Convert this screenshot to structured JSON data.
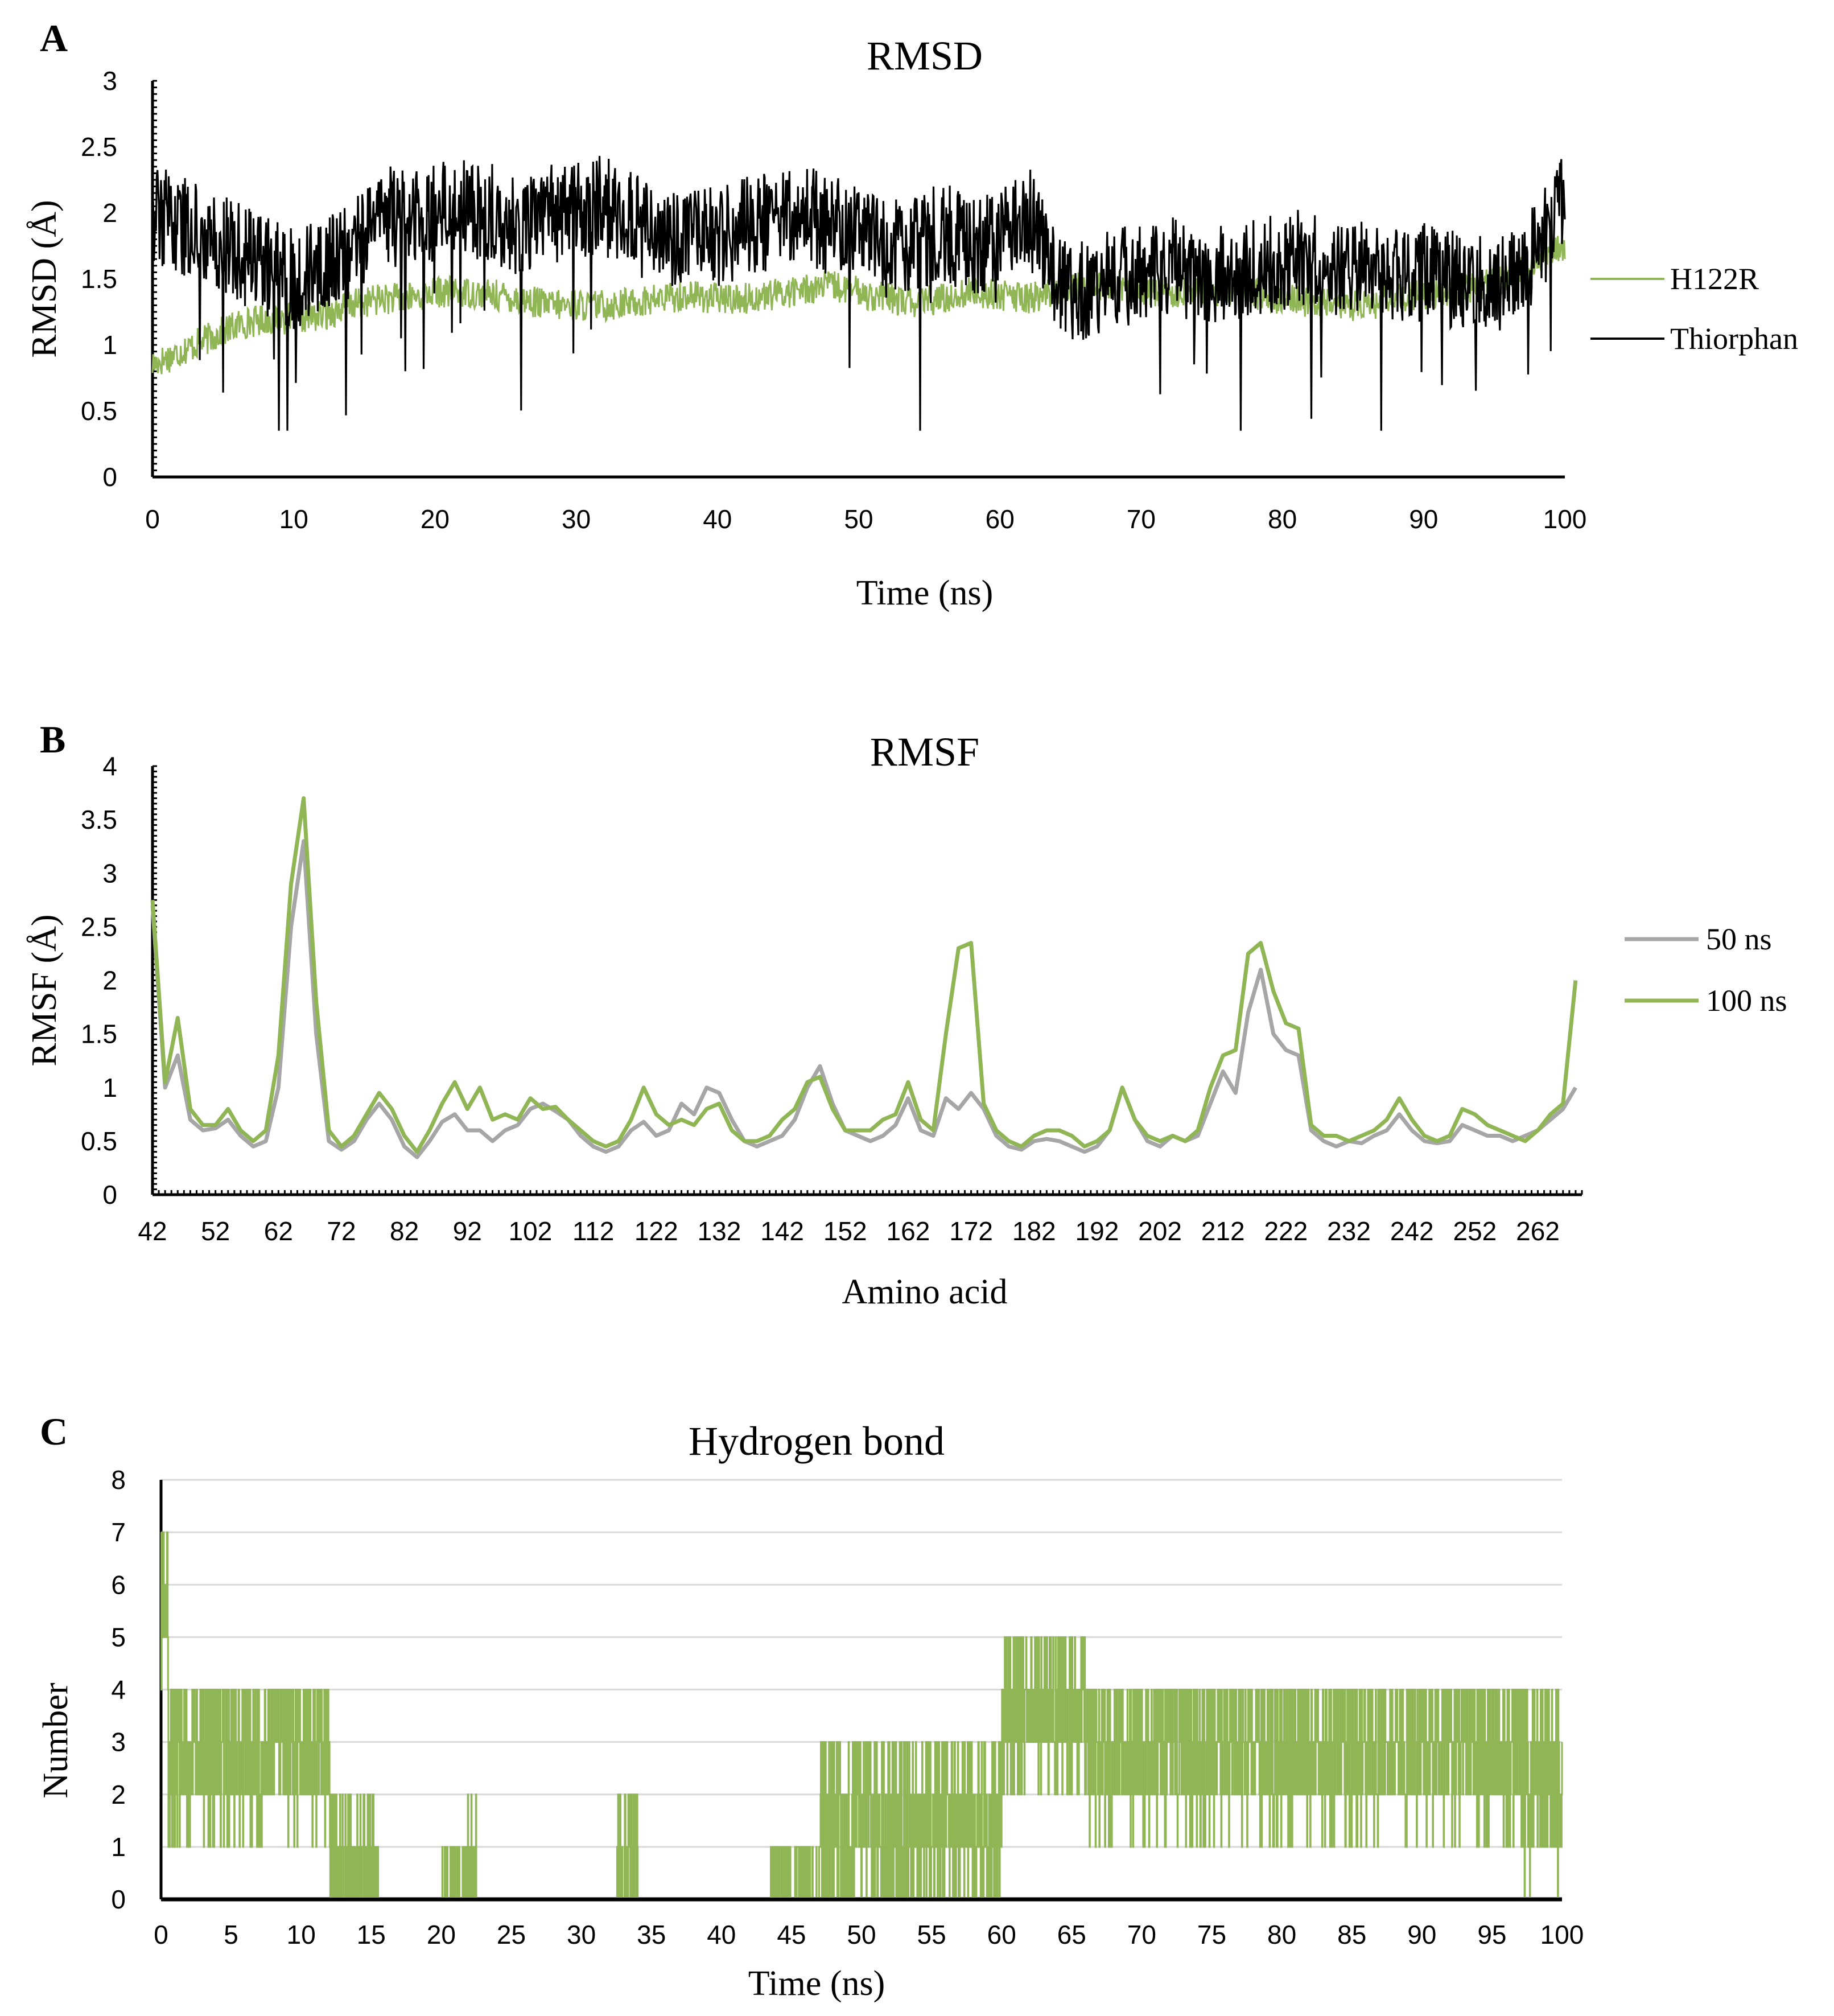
{
  "chart_data": [
    {
      "panel": "A",
      "type": "line",
      "title": "RMSD",
      "xlabel": "Time (ns)",
      "ylabel": "RMSD (Å)",
      "xlim": [
        0,
        100
      ],
      "ylim": [
        0,
        3
      ],
      "xticks": [
        "0",
        "10",
        "20",
        "30",
        "40",
        "50",
        "60",
        "70",
        "80",
        "90",
        "100"
      ],
      "yticks": [
        "0",
        "0.5",
        "1",
        "1.5",
        "2",
        "2.5",
        "3"
      ],
      "legend_position": "right",
      "grid": false,
      "series": [
        {
          "name": "H122R",
          "color": "#8fb554",
          "x": [
            0,
            2,
            4,
            6,
            8,
            10,
            12,
            14,
            16,
            18,
            20,
            22,
            24,
            26,
            28,
            30,
            32,
            34,
            36,
            38,
            40,
            42,
            44,
            46,
            48,
            50,
            52,
            54,
            56,
            58,
            60,
            62,
            64,
            66,
            68,
            70,
            72,
            74,
            76,
            78,
            80,
            82,
            84,
            86,
            88,
            90,
            92,
            94,
            96,
            98,
            100
          ],
          "y": [
            0.85,
            0.95,
            1.05,
            1.15,
            1.2,
            1.2,
            1.22,
            1.3,
            1.35,
            1.35,
            1.4,
            1.4,
            1.38,
            1.35,
            1.3,
            1.3,
            1.3,
            1.32,
            1.35,
            1.38,
            1.35,
            1.35,
            1.38,
            1.42,
            1.45,
            1.4,
            1.35,
            1.32,
            1.35,
            1.4,
            1.38,
            1.35,
            1.4,
            1.45,
            1.45,
            1.42,
            1.4,
            1.42,
            1.4,
            1.38,
            1.35,
            1.32,
            1.3,
            1.3,
            1.35,
            1.38,
            1.4,
            1.45,
            1.5,
            1.6,
            1.75
          ],
          "noise": 0.12
        },
        {
          "name": "Thiorphan",
          "color": "#000000",
          "x": [
            0,
            2,
            4,
            6,
            8,
            10,
            12,
            14,
            16,
            18,
            20,
            22,
            24,
            26,
            28,
            30,
            32,
            34,
            36,
            38,
            40,
            42,
            44,
            46,
            48,
            50,
            52,
            54,
            56,
            58,
            60,
            62,
            64,
            66,
            68,
            70,
            72,
            74,
            76,
            78,
            80,
            82,
            84,
            86,
            88,
            90,
            92,
            94,
            96,
            98,
            100
          ],
          "y": [
            2.0,
            1.9,
            1.85,
            1.7,
            1.6,
            1.5,
            1.6,
            1.7,
            2.0,
            1.95,
            2.0,
            2.05,
            2.0,
            1.9,
            2.0,
            2.0,
            2.1,
            1.95,
            1.75,
            1.85,
            1.8,
            1.9,
            1.95,
            2.0,
            1.9,
            1.85,
            1.7,
            1.8,
            1.85,
            1.75,
            1.8,
            2.0,
            1.45,
            1.4,
            1.5,
            1.55,
            1.6,
            1.55,
            1.55,
            1.6,
            1.6,
            1.7,
            1.55,
            1.6,
            1.5,
            1.55,
            1.5,
            1.45,
            1.5,
            1.7,
            2.1
          ],
          "noise": 0.38
        }
      ]
    },
    {
      "panel": "B",
      "type": "line",
      "title": "RMSF",
      "xlabel": "Amino acid",
      "ylabel": "RMSF (Å)",
      "xlim": [
        42,
        269
      ],
      "ylim": [
        0,
        4
      ],
      "xticks": [
        "42",
        "52",
        "62",
        "72",
        "82",
        "92",
        "102",
        "112",
        "122",
        "132",
        "142",
        "152",
        "162",
        "172",
        "182",
        "192",
        "202",
        "212",
        "222",
        "232",
        "242",
        "252",
        "262"
      ],
      "yticks": [
        "0",
        "0.5",
        "1",
        "1.5",
        "2",
        "2.5",
        "3",
        "3.5",
        "4"
      ],
      "legend_position": "right",
      "grid": false,
      "series": [
        {
          "name": "50 ns",
          "color": "#a6a6a6",
          "x": [
            42,
            44,
            46,
            48,
            50,
            52,
            54,
            56,
            58,
            60,
            62,
            64,
            66,
            68,
            70,
            72,
            74,
            76,
            78,
            80,
            82,
            84,
            86,
            88,
            90,
            92,
            94,
            96,
            98,
            100,
            102,
            104,
            106,
            108,
            110,
            112,
            114,
            116,
            118,
            120,
            122,
            124,
            126,
            128,
            130,
            132,
            134,
            136,
            138,
            140,
            142,
            144,
            146,
            148,
            150,
            152,
            154,
            156,
            158,
            160,
            162,
            164,
            166,
            168,
            170,
            172,
            174,
            176,
            178,
            180,
            182,
            184,
            186,
            188,
            190,
            192,
            194,
            196,
            198,
            200,
            202,
            204,
            206,
            208,
            210,
            212,
            214,
            216,
            218,
            220,
            222,
            224,
            226,
            228,
            230,
            232,
            234,
            236,
            238,
            240,
            242,
            244,
            246,
            248,
            250,
            252,
            254,
            256,
            258,
            260,
            262,
            264,
            266,
            268
          ],
          "y": [
            2.7,
            1.0,
            1.3,
            0.7,
            0.6,
            0.62,
            0.7,
            0.55,
            0.45,
            0.5,
            1.0,
            2.5,
            3.3,
            1.5,
            0.5,
            0.42,
            0.5,
            0.7,
            0.85,
            0.7,
            0.45,
            0.35,
            0.5,
            0.68,
            0.75,
            0.6,
            0.6,
            0.5,
            0.6,
            0.65,
            0.8,
            0.85,
            0.78,
            0.7,
            0.55,
            0.45,
            0.4,
            0.45,
            0.6,
            0.68,
            0.55,
            0.6,
            0.85,
            0.75,
            1.0,
            0.95,
            0.7,
            0.5,
            0.45,
            0.5,
            0.55,
            0.7,
            1.0,
            1.2,
            0.85,
            0.6,
            0.55,
            0.5,
            0.55,
            0.65,
            0.9,
            0.6,
            0.55,
            0.9,
            0.8,
            0.95,
            0.8,
            0.55,
            0.45,
            0.42,
            0.5,
            0.52,
            0.5,
            0.45,
            0.4,
            0.45,
            0.6,
            1.0,
            0.7,
            0.5,
            0.45,
            0.55,
            0.5,
            0.55,
            0.85,
            1.15,
            0.95,
            1.7,
            2.1,
            1.5,
            1.35,
            1.3,
            0.6,
            0.5,
            0.45,
            0.5,
            0.48,
            0.55,
            0.6,
            0.75,
            0.6,
            0.5,
            0.48,
            0.5,
            0.65,
            0.6,
            0.55,
            0.55,
            0.5,
            0.55,
            0.6,
            0.7,
            0.8,
            1.0
          ],
          "label": "50 ns"
        },
        {
          "name": "100 ns",
          "color": "#8fb554",
          "x": [
            42,
            44,
            46,
            48,
            50,
            52,
            54,
            56,
            58,
            60,
            62,
            64,
            66,
            68,
            70,
            72,
            74,
            76,
            78,
            80,
            82,
            84,
            86,
            88,
            90,
            92,
            94,
            96,
            98,
            100,
            102,
            104,
            106,
            108,
            110,
            112,
            114,
            116,
            118,
            120,
            122,
            124,
            126,
            128,
            130,
            132,
            134,
            136,
            138,
            140,
            142,
            144,
            146,
            148,
            150,
            152,
            154,
            156,
            158,
            160,
            162,
            164,
            166,
            168,
            170,
            172,
            174,
            176,
            178,
            180,
            182,
            184,
            186,
            188,
            190,
            192,
            194,
            196,
            198,
            200,
            202,
            204,
            206,
            208,
            210,
            212,
            214,
            216,
            218,
            220,
            222,
            224,
            226,
            228,
            230,
            232,
            234,
            236,
            238,
            240,
            242,
            244,
            246,
            248,
            250,
            252,
            254,
            256,
            258,
            260,
            262,
            264,
            266,
            268
          ],
          "y": [
            2.75,
            1.05,
            1.65,
            0.8,
            0.65,
            0.65,
            0.8,
            0.6,
            0.5,
            0.6,
            1.3,
            2.9,
            3.7,
            1.8,
            0.6,
            0.45,
            0.55,
            0.75,
            0.95,
            0.8,
            0.55,
            0.4,
            0.6,
            0.85,
            1.05,
            0.8,
            1.0,
            0.7,
            0.75,
            0.7,
            0.9,
            0.8,
            0.82,
            0.7,
            0.6,
            0.5,
            0.45,
            0.5,
            0.7,
            1.0,
            0.75,
            0.65,
            0.7,
            0.65,
            0.8,
            0.85,
            0.6,
            0.5,
            0.5,
            0.55,
            0.7,
            0.8,
            1.05,
            1.1,
            0.8,
            0.6,
            0.6,
            0.6,
            0.7,
            0.75,
            1.05,
            0.7,
            0.6,
            1.5,
            2.3,
            2.35,
            0.85,
            0.6,
            0.5,
            0.45,
            0.55,
            0.6,
            0.6,
            0.55,
            0.45,
            0.5,
            0.6,
            1.0,
            0.7,
            0.55,
            0.5,
            0.55,
            0.5,
            0.6,
            1.0,
            1.3,
            1.35,
            2.25,
            2.35,
            1.9,
            1.6,
            1.55,
            0.65,
            0.55,
            0.55,
            0.5,
            0.55,
            0.6,
            0.7,
            0.9,
            0.7,
            0.55,
            0.5,
            0.55,
            0.8,
            0.75,
            0.65,
            0.6,
            0.55,
            0.5,
            0.6,
            0.75,
            0.85,
            2.0
          ],
          "label": "100 ns"
        }
      ]
    },
    {
      "panel": "C",
      "type": "line",
      "title": "Hydrogen bond",
      "xlabel": "Time (ns)",
      "ylabel": "Number",
      "xlim": [
        0,
        100
      ],
      "ylim": [
        0,
        8
      ],
      "xticks": [
        "0",
        "5",
        "10",
        "15",
        "20",
        "25",
        "30",
        "35",
        "40",
        "45",
        "50",
        "55",
        "60",
        "65",
        "70",
        "75",
        "80",
        "85",
        "90",
        "95",
        "100"
      ],
      "yticks": [
        "0",
        "1",
        "2",
        "3",
        "4",
        "5",
        "6",
        "7",
        "8"
      ],
      "grid": true,
      "series": [
        {
          "name": "Hydrogen bond",
          "color": "#8fb554",
          "segments": [
            {
              "start": 0,
              "end": 0.5,
              "mean": 5.5,
              "spread": 2
            },
            {
              "start": 0.5,
              "end": 2.5,
              "mean": 2.5,
              "spread": 1.5
            },
            {
              "start": 2.5,
              "end": 12,
              "mean": 2.8,
              "spread": 1.6
            },
            {
              "start": 12,
              "end": 15.5,
              "mean": 0.6,
              "spread": 1.2
            },
            {
              "start": 15.5,
              "end": 20,
              "mean": 0.05,
              "spread": 0.3
            },
            {
              "start": 20,
              "end": 22.5,
              "mean": 0.4,
              "spread": 1.2
            },
            {
              "start": 22.5,
              "end": 32.5,
              "mean": 0.0,
              "spread": 0
            },
            {
              "start": 32.5,
              "end": 34,
              "mean": 0.8,
              "spread": 1.5
            },
            {
              "start": 34,
              "end": 43.5,
              "mean": 0.0,
              "spread": 0
            },
            {
              "start": 43.5,
              "end": 47,
              "mean": 0.3,
              "spread": 1.0
            },
            {
              "start": 47,
              "end": 60,
              "mean": 1.4,
              "spread": 1.6
            },
            {
              "start": 60,
              "end": 66,
              "mean": 3.6,
              "spread": 1.4
            },
            {
              "start": 66,
              "end": 97,
              "mean": 2.8,
              "spread": 1.5
            },
            {
              "start": 97,
              "end": 100,
              "mean": 2.2,
              "spread": 2.0
            }
          ]
        },
        {
          "name": "baseline",
          "color": "#000000",
          "value": 0
        }
      ]
    }
  ]
}
